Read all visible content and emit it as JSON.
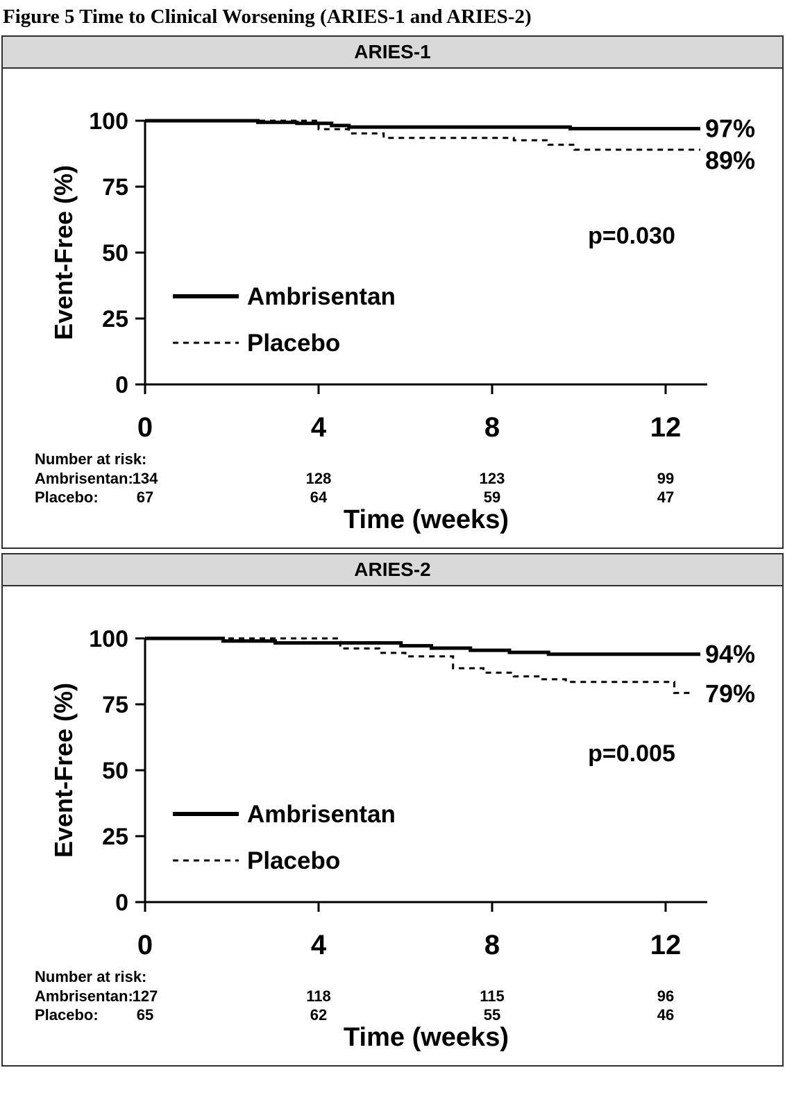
{
  "figure_title": "Figure 5 Time to Clinical Worsening (ARIES-1 and ARIES-2)",
  "colors": {
    "ink": "#000000",
    "header_bg": "#d9d9d9",
    "border": "#2f2f2f"
  },
  "chart_data": [
    {
      "type": "line",
      "title": "ARIES-1",
      "ylabel": "Event-Free (%)",
      "xlabel": "Time (weeks)",
      "ylim": [
        0,
        100
      ],
      "yticks": [
        100,
        75,
        50,
        25,
        0
      ],
      "xticks": [
        0,
        4,
        8,
        12
      ],
      "p_value": "p=0.030",
      "legend": [
        {
          "label": "Ambrisentan",
          "style": "solid"
        },
        {
          "label": "Placebo",
          "style": "dashed"
        }
      ],
      "end_labels": [
        {
          "text": "97%",
          "value": 97
        },
        {
          "text": "89%",
          "value": 89
        }
      ],
      "series": [
        {
          "name": "Ambrisentan",
          "style": "solid",
          "end_week": 12.8,
          "points": [
            [
              0,
              100
            ],
            [
              2.6,
              99.4
            ],
            [
              3.5,
              99.0
            ],
            [
              4.3,
              98.2
            ],
            [
              4.7,
              97.6
            ],
            [
              9.8,
              97.0
            ]
          ]
        },
        {
          "name": "Placebo",
          "style": "dashed",
          "end_week": 12.8,
          "points": [
            [
              0,
              100
            ],
            [
              4.0,
              96.8
            ],
            [
              4.7,
              95.2
            ],
            [
              5.5,
              93.5
            ],
            [
              8.5,
              92.6
            ],
            [
              9.3,
              90.9
            ],
            [
              9.9,
              89.0
            ]
          ]
        }
      ],
      "at_risk": {
        "heading": "Number at risk:",
        "rows": [
          {
            "label": "Ambrisentan:",
            "values": [
              "134",
              "128",
              "123",
              "99"
            ]
          },
          {
            "label": "Placebo:",
            "values": [
              "67",
              "64",
              "59",
              "47"
            ]
          }
        ]
      }
    },
    {
      "type": "line",
      "title": "ARIES-2",
      "ylabel": "Event-Free (%)",
      "xlabel": "Time (weeks)",
      "ylim": [
        0,
        100
      ],
      "yticks": [
        100,
        75,
        50,
        25,
        0
      ],
      "xticks": [
        0,
        4,
        8,
        12
      ],
      "p_value": "p=0.005",
      "legend": [
        {
          "label": "Ambrisentan",
          "style": "solid"
        },
        {
          "label": "Placebo",
          "style": "dashed"
        }
      ],
      "end_labels": [
        {
          "text": "94%",
          "value": 94
        },
        {
          "text": "79%",
          "value": 79
        }
      ],
      "series": [
        {
          "name": "Ambrisentan",
          "style": "solid",
          "end_week": 12.8,
          "points": [
            [
              0,
              100
            ],
            [
              1.8,
              99.0
            ],
            [
              3.0,
              98.3
            ],
            [
              5.9,
              97.2
            ],
            [
              6.6,
              96.3
            ],
            [
              7.5,
              95.5
            ],
            [
              8.4,
              94.7
            ],
            [
              9.3,
              94.0
            ]
          ]
        },
        {
          "name": "Placebo",
          "style": "dashed",
          "end_week": 12.65,
          "points": [
            [
              0,
              100
            ],
            [
              4.5,
              96.2
            ],
            [
              5.4,
              94.5
            ],
            [
              6.0,
              93.2
            ],
            [
              7.1,
              88.7
            ],
            [
              7.8,
              87.0
            ],
            [
              8.5,
              85.6
            ],
            [
              9.1,
              84.5
            ],
            [
              9.7,
              83.5
            ],
            [
              12.2,
              79.3
            ]
          ]
        }
      ],
      "at_risk": {
        "heading": "Number at risk:",
        "rows": [
          {
            "label": "Ambrisentan:",
            "values": [
              "127",
              "118",
              "115",
              "96"
            ]
          },
          {
            "label": "Placebo:",
            "values": [
              "65",
              "62",
              "55",
              "46"
            ]
          }
        ]
      }
    }
  ]
}
